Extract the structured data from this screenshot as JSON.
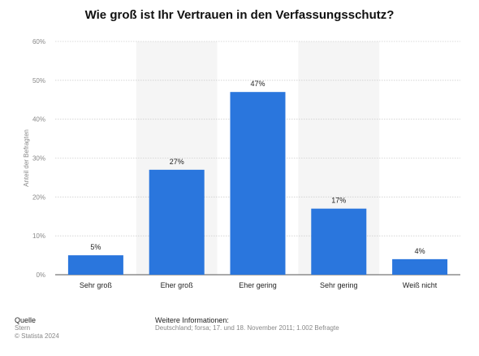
{
  "chart_data": {
    "type": "bar",
    "title": "Wie groß ist Ihr Vertrauen in den Verfassungsschutz?",
    "ylabel": "Anteil der Befragten",
    "xlabel": "",
    "categories": [
      "Sehr groß",
      "Eher groß",
      "Eher gering",
      "Sehr gering",
      "Weiß nicht"
    ],
    "values": [
      5,
      27,
      47,
      17,
      4
    ],
    "value_labels": [
      "5%",
      "27%",
      "47%",
      "17%",
      "4%"
    ],
    "ylim": [
      0,
      60
    ],
    "yticks": [
      0,
      10,
      20,
      30,
      40,
      50,
      60
    ],
    "ytick_labels": [
      "0%",
      "10%",
      "20%",
      "30%",
      "40%",
      "50%",
      "60%"
    ],
    "grid": true,
    "bar_color": "#2a76dd"
  },
  "footer": {
    "source_heading": "Quelle",
    "source_name": "Stern",
    "copyright": "© Statista 2024",
    "info_heading": "Weitere Informationen:",
    "info_text": "Deutschland; forsa; 17. und 18. November 2011; 1.002 Befragte"
  }
}
